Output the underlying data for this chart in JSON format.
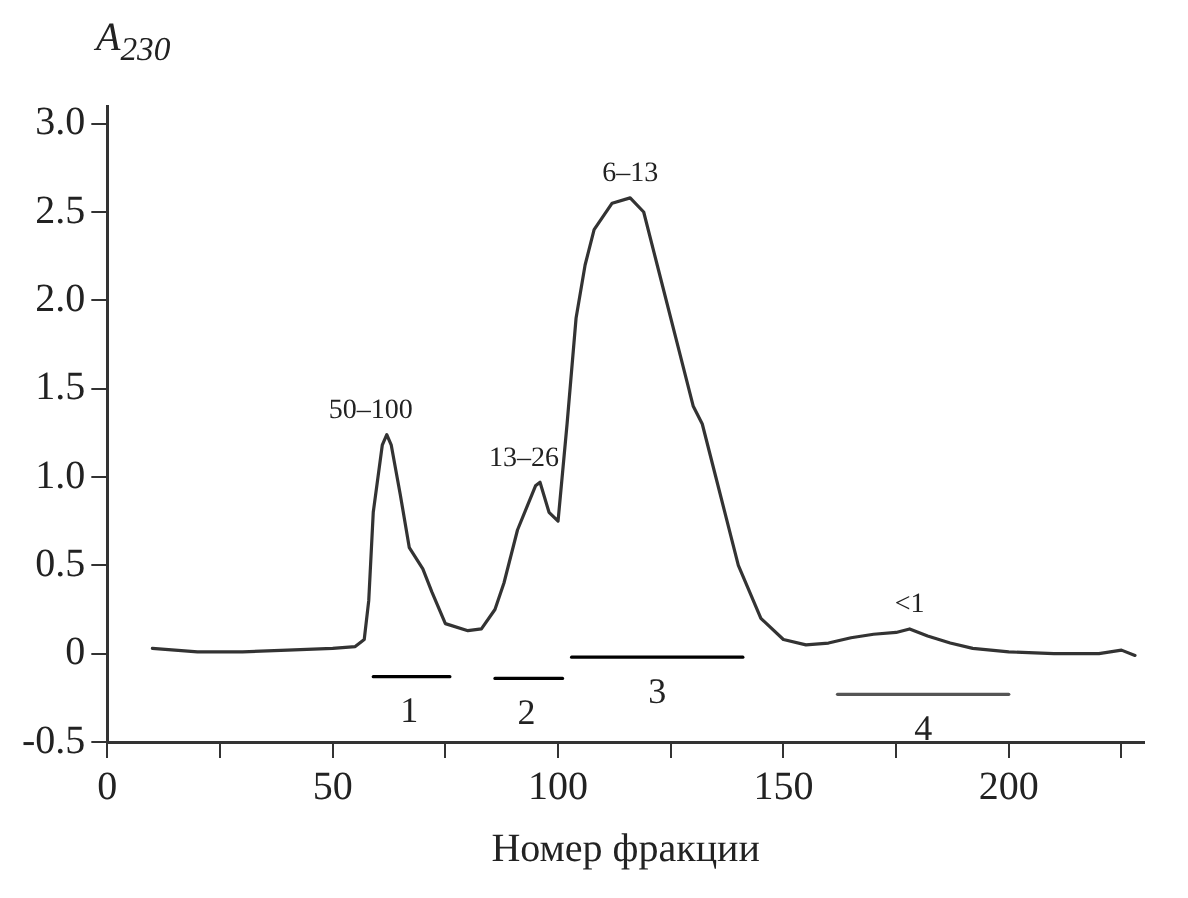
{
  "chart_data": {
    "type": "line",
    "xlabel": "Номер фракции",
    "ylabel": "A$_{230}$",
    "xlim": [
      0,
      230
    ],
    "ylim": [
      -0.5,
      3.1
    ],
    "xticks": [
      0,
      {
        "value": 25,
        "label": null
      },
      50,
      {
        "value": 75,
        "label": null
      },
      100,
      {
        "value": 125,
        "label": null
      },
      150,
      {
        "value": 175,
        "label": null
      },
      200,
      {
        "value": 225,
        "label": null
      }
    ],
    "yticks": [
      -0.5,
      0,
      0.5,
      {
        "value": 1,
        "label": "1.0"
      },
      1.5,
      {
        "value": 2,
        "label": "2.0"
      },
      2.5,
      {
        "value": 3,
        "label": "3.0"
      }
    ],
    "grid": false,
    "legend": false,
    "marker": "none",
    "line_style": "solid",
    "series": [
      {
        "color": "#333333",
        "x": [
          10,
          20,
          30,
          40,
          50,
          55,
          57,
          58,
          59,
          61,
          62,
          63,
          65,
          67,
          70,
          72,
          75,
          80,
          83,
          86,
          88,
          91,
          95,
          96,
          98,
          100,
          102,
          104,
          106,
          108,
          112,
          116,
          119,
          122,
          126,
          130,
          132,
          135,
          140,
          145,
          150,
          155,
          160,
          165,
          170,
          175,
          178,
          182,
          187,
          192,
          200,
          210,
          220,
          225,
          228
        ],
        "values": [
          0.03,
          0.01,
          0.01,
          0.02,
          0.03,
          0.04,
          0.08,
          0.3,
          0.8,
          1.18,
          1.24,
          1.18,
          0.9,
          0.6,
          0.48,
          0.35,
          0.17,
          0.13,
          0.14,
          0.25,
          0.4,
          0.7,
          0.95,
          0.97,
          0.8,
          0.75,
          1.3,
          1.9,
          2.2,
          2.4,
          2.55,
          2.58,
          2.5,
          2.2,
          1.8,
          1.4,
          1.3,
          1.0,
          0.5,
          0.2,
          0.08,
          0.05,
          0.06,
          0.09,
          0.11,
          0.12,
          0.14,
          0.1,
          0.06,
          0.03,
          0.01,
          0.0,
          0.0,
          0.02,
          -0.01
        ]
      },
      {
        "color": "#000000",
        "x": [
          59,
          76
        ],
        "values": [
          -0.13,
          -0.13
        ]
      },
      {
        "color": "#000000",
        "x": [
          86,
          101
        ],
        "values": [
          -0.14,
          -0.14
        ]
      },
      {
        "color": "#000000",
        "x": [
          103,
          141
        ],
        "values": [
          -0.02,
          -0.02
        ]
      },
      {
        "color": "#555555",
        "x": [
          162,
          200
        ],
        "values": [
          -0.23,
          -0.23
        ]
      }
    ],
    "annotations": [
      {
        "text": "50–100",
        "x": 62,
        "y": 1.24
      },
      {
        "text": "13–26",
        "x": 96,
        "y": 0.97
      },
      {
        "text": "6–13",
        "x": 116,
        "y": 2.58
      },
      {
        "text": "<1",
        "x": 178,
        "y": 0.14
      },
      {
        "text": "1",
        "x": 67,
        "y": -0.13
      },
      {
        "text": "2",
        "x": 93,
        "y": -0.14
      },
      {
        "text": "3",
        "x": 122,
        "y": -0.02
      },
      {
        "text": "4",
        "x": 181,
        "y": -0.23
      }
    ]
  }
}
